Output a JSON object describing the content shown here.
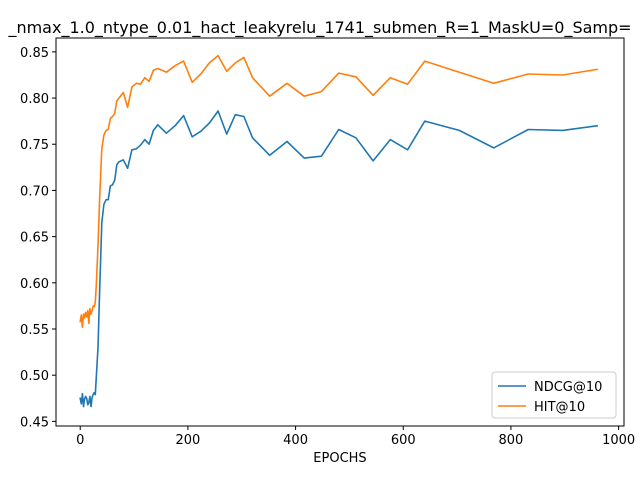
{
  "chart_data": {
    "type": "line",
    "title": "_nmax_1.0_ntype_0.01_hact_leakyrelu_1741_submen_R=1_MaskU=0_Samp=",
    "xlabel": "EPOCHS",
    "ylabel": "",
    "xlim": [
      -45,
      1010
    ],
    "ylim": [
      0.445,
      0.865
    ],
    "xticks": [
      0,
      200,
      400,
      600,
      800,
      1000
    ],
    "yticks": [
      0.45,
      0.5,
      0.55,
      0.6,
      0.65,
      0.7,
      0.75,
      0.8,
      0.85
    ],
    "ytick_labels": [
      "0.45",
      "0.50",
      "0.55",
      "0.60",
      "0.65",
      "0.70",
      "0.75",
      "0.80",
      "0.85"
    ],
    "grid": false,
    "legend_position": "lower-right",
    "series": [
      {
        "name": "NDCG@10",
        "color": "#1f77b4",
        "x": [
          0,
          2,
          4,
          6,
          8,
          10,
          12,
          14,
          16,
          18,
          20,
          22,
          24,
          26,
          28,
          30,
          33,
          36,
          40,
          44,
          48,
          52,
          56,
          60,
          64,
          68,
          72,
          80,
          88,
          96,
          104,
          112,
          120,
          128,
          136,
          144,
          160,
          176,
          192,
          208,
          224,
          240,
          256,
          272,
          288,
          304,
          320,
          352,
          384,
          416,
          448,
          480,
          512,
          544,
          576,
          608,
          640,
          704,
          768,
          832,
          896,
          960
        ],
        "y": [
          0.475,
          0.469,
          0.48,
          0.466,
          0.474,
          0.477,
          0.475,
          0.468,
          0.47,
          0.477,
          0.466,
          0.476,
          0.479,
          0.481,
          0.479,
          0.5,
          0.53,
          0.59,
          0.665,
          0.685,
          0.69,
          0.69,
          0.705,
          0.706,
          0.711,
          0.728,
          0.731,
          0.733,
          0.724,
          0.744,
          0.745,
          0.749,
          0.755,
          0.75,
          0.765,
          0.771,
          0.762,
          0.77,
          0.781,
          0.758,
          0.764,
          0.773,
          0.786,
          0.761,
          0.782,
          0.78,
          0.757,
          0.738,
          0.753,
          0.735,
          0.737,
          0.766,
          0.757,
          0.732,
          0.755,
          0.744,
          0.775,
          0.765,
          0.746,
          0.766,
          0.765,
          0.77
        ]
      },
      {
        "name": "HIT@10",
        "color": "#ff7f0e",
        "x": [
          0,
          2,
          4,
          6,
          8,
          10,
          12,
          14,
          16,
          18,
          20,
          22,
          24,
          26,
          28,
          30,
          33,
          36,
          40,
          44,
          48,
          52,
          56,
          60,
          64,
          68,
          72,
          80,
          88,
          96,
          104,
          112,
          120,
          128,
          136,
          144,
          160,
          176,
          192,
          208,
          224,
          240,
          256,
          272,
          288,
          304,
          320,
          352,
          384,
          416,
          448,
          480,
          512,
          544,
          576,
          608,
          640,
          704,
          768,
          832,
          896,
          960
        ],
        "y": [
          0.558,
          0.565,
          0.552,
          0.566,
          0.562,
          0.568,
          0.563,
          0.57,
          0.556,
          0.572,
          0.566,
          0.57,
          0.575,
          0.574,
          0.579,
          0.6,
          0.64,
          0.69,
          0.745,
          0.76,
          0.765,
          0.766,
          0.778,
          0.78,
          0.783,
          0.797,
          0.8,
          0.806,
          0.79,
          0.812,
          0.816,
          0.815,
          0.822,
          0.818,
          0.83,
          0.832,
          0.828,
          0.835,
          0.84,
          0.817,
          0.826,
          0.838,
          0.846,
          0.829,
          0.838,
          0.844,
          0.822,
          0.802,
          0.816,
          0.802,
          0.807,
          0.827,
          0.823,
          0.803,
          0.822,
          0.815,
          0.84,
          0.828,
          0.816,
          0.826,
          0.825,
          0.831
        ]
      }
    ]
  }
}
